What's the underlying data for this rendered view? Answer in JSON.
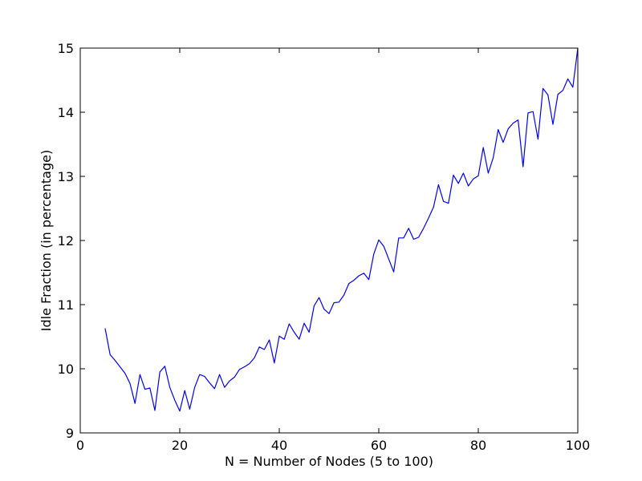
{
  "chart_data": {
    "type": "line",
    "title": "",
    "xlabel": "N = Number of Nodes (5 to 100)",
    "ylabel": "Idle Fraction (in percentage)",
    "xlim": [
      0,
      100
    ],
    "ylim": [
      9,
      15
    ],
    "xticks": [
      0,
      20,
      40,
      60,
      80,
      100
    ],
    "yticks": [
      9,
      10,
      11,
      12,
      13,
      14,
      15
    ],
    "grid": false,
    "line_color": "#0000ff",
    "series": [
      {
        "x": [
          5,
          6,
          7,
          8,
          9,
          10,
          11,
          12,
          13,
          14,
          15,
          16,
          17,
          18,
          19,
          20,
          21,
          22,
          23,
          24,
          25,
          26,
          27,
          28,
          29,
          30,
          31,
          32,
          33,
          34,
          35,
          36,
          37,
          38,
          39,
          40,
          41,
          42,
          43,
          44,
          45,
          46,
          47,
          48,
          49,
          50,
          51,
          52,
          53,
          54,
          55,
          56,
          57,
          58,
          59,
          60,
          61,
          62,
          63,
          64,
          65,
          66,
          67,
          68,
          69,
          70,
          71,
          72,
          73,
          74,
          75,
          76,
          77,
          78,
          79,
          80,
          81,
          82,
          83,
          84,
          85,
          86,
          87,
          88,
          89,
          90,
          91,
          92,
          93,
          94,
          95,
          96,
          97,
          98,
          99,
          100
        ],
        "values": [
          10.63,
          10.22,
          10.13,
          10.03,
          9.93,
          9.77,
          9.46,
          9.91,
          9.68,
          9.7,
          9.35,
          9.95,
          10.04,
          9.71,
          9.51,
          9.34,
          9.66,
          9.37,
          9.71,
          9.91,
          9.88,
          9.78,
          9.69,
          9.91,
          9.71,
          9.81,
          9.87,
          9.99,
          10.03,
          10.08,
          10.17,
          10.34,
          10.3,
          10.45,
          10.09,
          10.51,
          10.46,
          10.7,
          10.57,
          10.46,
          10.71,
          10.57,
          10.98,
          11.11,
          10.93,
          10.86,
          11.03,
          11.04,
          11.15,
          11.33,
          11.38,
          11.45,
          11.49,
          11.39,
          11.79,
          12.01,
          11.91,
          11.71,
          11.51,
          12.04,
          12.04,
          12.19,
          12.02,
          12.05,
          12.19,
          12.35,
          12.52,
          12.87,
          12.61,
          12.58,
          13.02,
          12.89,
          13.05,
          12.85,
          12.96,
          13.01,
          13.45,
          13.05,
          13.29,
          13.73,
          13.53,
          13.74,
          13.83,
          13.88,
          13.15,
          13.99,
          14.01,
          13.58,
          14.37,
          14.27,
          13.81,
          14.28,
          14.34,
          14.52,
          14.39,
          15.0
        ]
      }
    ]
  }
}
